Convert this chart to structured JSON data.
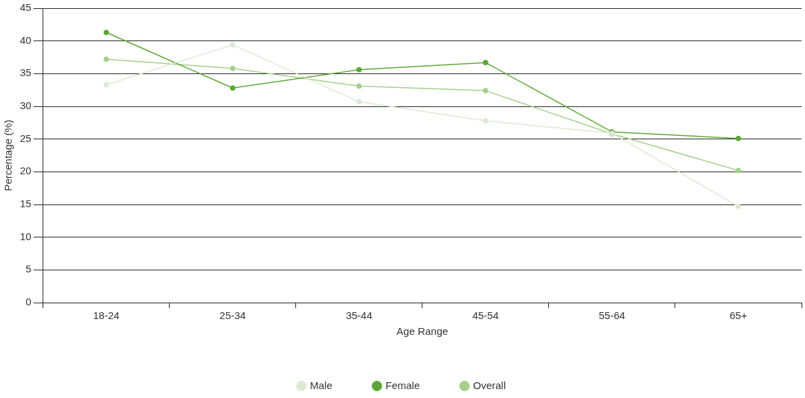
{
  "chart_data": {
    "type": "line",
    "xlabel": "Age Range",
    "ylabel": "Percentage (%)",
    "categories": [
      "18-24",
      "25-34",
      "35-44",
      "45-54",
      "55-64",
      "65+"
    ],
    "series": [
      {
        "name": "Male",
        "color": "#dde9d3",
        "values": [
          33.3,
          39.4,
          30.7,
          27.8,
          25.9,
          14.7
        ]
      },
      {
        "name": "Female",
        "color": "#5aa832",
        "values": [
          41.3,
          32.8,
          35.6,
          36.7,
          26.1,
          25.1
        ]
      },
      {
        "name": "Overall",
        "color": "#a5cf8a",
        "values": [
          37.2,
          35.8,
          33.1,
          32.4,
          25.8,
          20.2
        ]
      }
    ],
    "ylim": [
      0,
      45
    ],
    "yticks": [
      0,
      5,
      10,
      15,
      20,
      25,
      30,
      35,
      40,
      45
    ],
    "grid": "y",
    "legend": "bottom",
    "marker": "circle",
    "line_style": "solid"
  }
}
